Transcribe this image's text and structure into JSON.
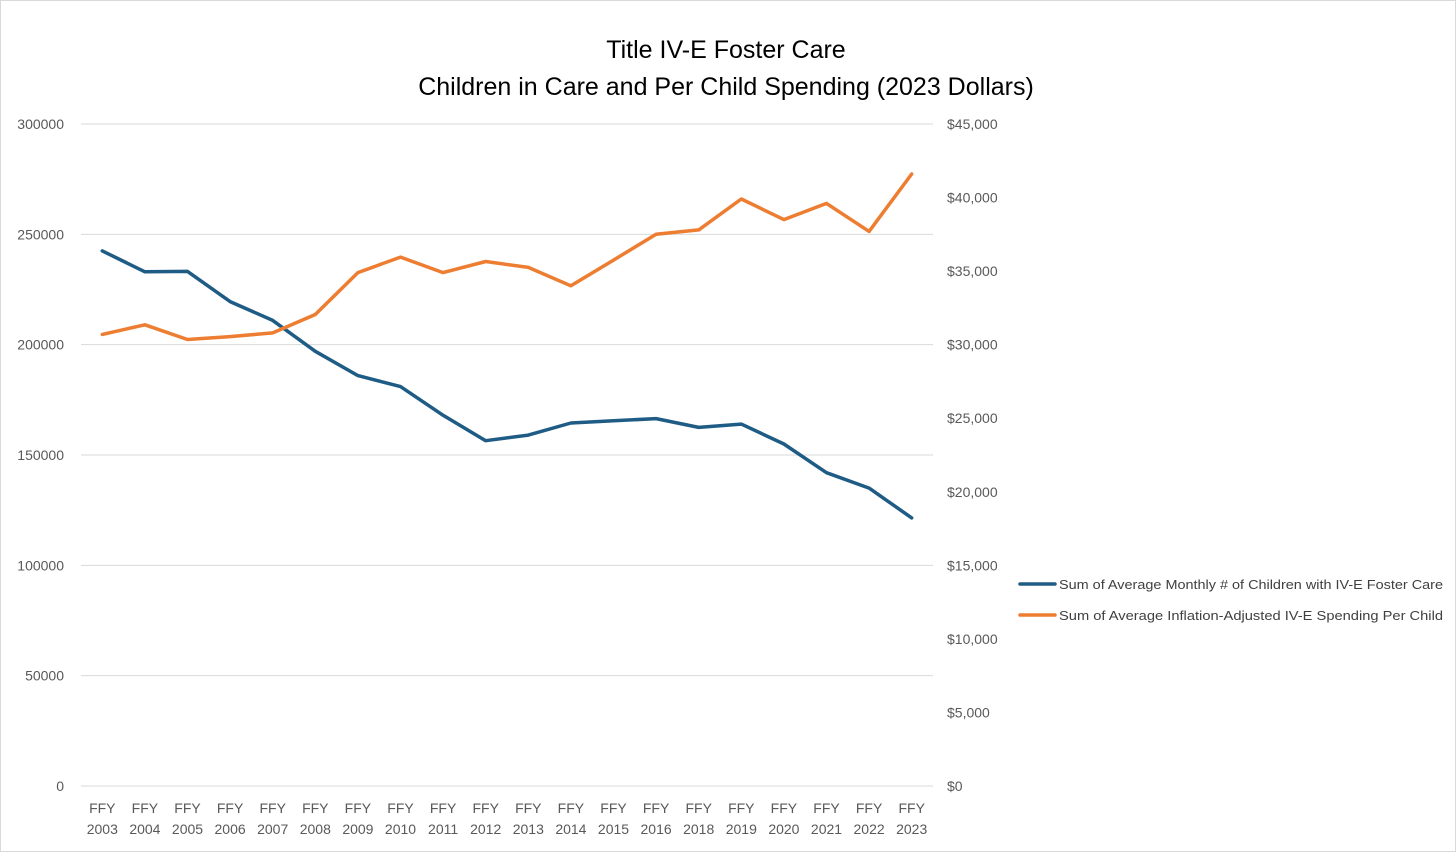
{
  "chart_data": {
    "type": "line",
    "title": [
      "Title IV-E Foster Care",
      "Children in Care and Per Child Spending (2023 Dollars)"
    ],
    "categories": [
      [
        "FFY",
        "2003"
      ],
      [
        "FFY",
        "2004"
      ],
      [
        "FFY",
        "2005"
      ],
      [
        "FFY",
        "2006"
      ],
      [
        "FFY",
        "2007"
      ],
      [
        "FFY",
        "2008"
      ],
      [
        "FFY",
        "2009"
      ],
      [
        "FFY",
        "2010"
      ],
      [
        "FFY",
        "2011"
      ],
      [
        "FFY",
        "2012"
      ],
      [
        "FFY",
        "2013"
      ],
      [
        "FFY",
        "2014"
      ],
      [
        "FFY",
        "2015"
      ],
      [
        "FFY",
        "2016"
      ],
      [
        "FFY",
        "2018"
      ],
      [
        "FFY",
        "2019"
      ],
      [
        "FFY",
        "2020"
      ],
      [
        "FFY",
        "2021"
      ],
      [
        "FFY",
        "2022"
      ],
      [
        "FFY",
        "2023"
      ]
    ],
    "y_left": {
      "ylim": [
        0,
        300000
      ],
      "ticks": [
        "0",
        "50000",
        "100000",
        "150000",
        "200000",
        "250000",
        "300000"
      ]
    },
    "y_right": {
      "ylim": [
        0,
        45000
      ],
      "ticks": [
        "$0",
        "$5,000",
        "$10,000",
        "$15,000",
        "$20,000",
        "$25,000",
        "$30,000",
        "$35,000",
        "$40,000",
        "$45,000"
      ]
    },
    "grid": true,
    "legend_position": "right",
    "series": [
      {
        "name": "Sum of Average Monthly # of Children with IV-E Foster Care",
        "axis": "left",
        "color": "#1f5c85",
        "values": [
          242500,
          233000,
          233200,
          219500,
          211000,
          197000,
          186000,
          181000,
          168000,
          156500,
          159000,
          164500,
          165500,
          166500,
          162500,
          164000,
          155000,
          142000,
          135000,
          121500
        ]
      },
      {
        "name": "Sum of Average Inflation-Adjusted IV-E Spending Per Child",
        "axis": "right",
        "color": "#ed7d31",
        "values": [
          30700,
          31350,
          30350,
          30550,
          30800,
          32050,
          34900,
          35950,
          34900,
          35650,
          35250,
          34000,
          35750,
          37500,
          37800,
          39900,
          38500,
          39600,
          37700,
          41600
        ]
      }
    ]
  }
}
